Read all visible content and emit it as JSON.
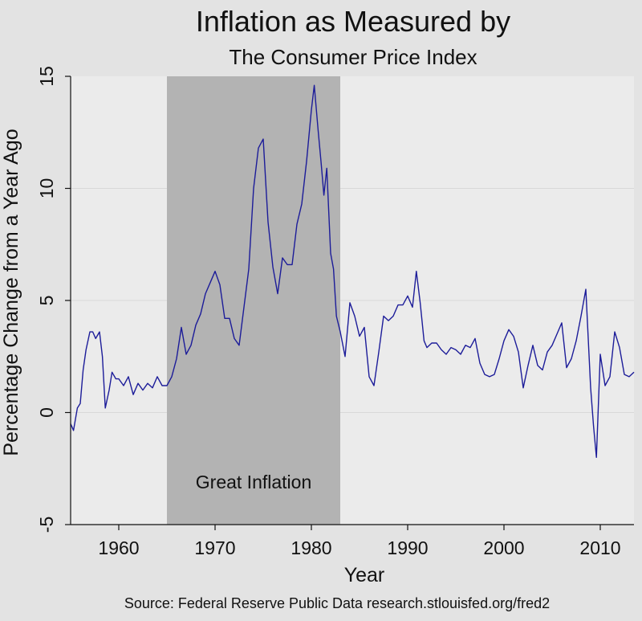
{
  "chart_data": {
    "type": "line",
    "title": "Inflation as Measured by",
    "subtitle": "The Consumer Price Index",
    "xlabel": "Year",
    "ylabel": "Percentage Change from a Year Ago",
    "source": "Source: Federal Reserve Public Data research.stlouisfed.org/fred2",
    "xlim": [
      1955,
      2013.5
    ],
    "ylim": [
      -5,
      15
    ],
    "x_ticks": [
      1960,
      1970,
      1980,
      1990,
      2000,
      2010
    ],
    "y_ticks": [
      -5,
      0,
      5,
      10,
      15
    ],
    "grid": "horizontal",
    "shaded_region": {
      "x_start": 1965,
      "x_end": 1983,
      "label": "Great Inflation"
    },
    "colors": {
      "line": "#1c1c99",
      "plot_bg": "#ebebeb",
      "shade": "#b3b3b3",
      "page_bg": "#e3e3e3"
    },
    "series": [
      {
        "x": [
          1955.0,
          1955.3,
          1955.7,
          1956.0,
          1956.3,
          1956.6,
          1957.0,
          1957.3,
          1957.6,
          1958.0,
          1958.3,
          1958.6,
          1959.0,
          1959.3,
          1959.7,
          1960.0,
          1960.5,
          1961.0,
          1961.5,
          1962.0,
          1962.5,
          1963.0,
          1963.5,
          1964.0,
          1964.5,
          1965.0,
          1965.5,
          1966.0,
          1966.5,
          1967.0,
          1967.5,
          1968.0,
          1968.5,
          1969.0,
          1969.5,
          1970.0,
          1970.5,
          1971.0,
          1971.5,
          1972.0,
          1972.5,
          1973.0,
          1973.5,
          1974.0,
          1974.5,
          1975.0,
          1975.5,
          1976.0,
          1976.5,
          1977.0,
          1977.5,
          1978.0,
          1978.5,
          1979.0,
          1979.5,
          1980.0,
          1980.3,
          1980.7,
          1981.0,
          1981.3,
          1981.6,
          1982.0,
          1982.3,
          1982.6,
          1983.0,
          1983.5,
          1984.0,
          1984.5,
          1985.0,
          1985.5,
          1986.0,
          1986.5,
          1987.0,
          1987.5,
          1988.0,
          1988.5,
          1989.0,
          1989.5,
          1990.0,
          1990.5,
          1990.9,
          1991.3,
          1991.7,
          1992.0,
          1992.5,
          1993.0,
          1993.5,
          1994.0,
          1994.5,
          1995.0,
          1995.5,
          1996.0,
          1996.5,
          1997.0,
          1997.5,
          1998.0,
          1998.5,
          1999.0,
          1999.5,
          2000.0,
          2000.5,
          2001.0,
          2001.5,
          2002.0,
          2002.5,
          2003.0,
          2003.5,
          2004.0,
          2004.5,
          2005.0,
          2005.5,
          2006.0,
          2006.5,
          2007.0,
          2007.5,
          2008.0,
          2008.5,
          2009.0,
          2009.3,
          2009.6,
          2010.0,
          2010.5,
          2011.0,
          2011.5,
          2012.0,
          2012.5,
          2013.0,
          2013.5
        ],
        "y": [
          -0.5,
          -0.8,
          0.2,
          0.4,
          1.9,
          2.8,
          3.6,
          3.6,
          3.3,
          3.6,
          2.5,
          0.2,
          1.0,
          1.8,
          1.5,
          1.5,
          1.2,
          1.6,
          0.8,
          1.3,
          1.0,
          1.3,
          1.1,
          1.6,
          1.2,
          1.2,
          1.6,
          2.4,
          3.8,
          2.6,
          3.0,
          3.9,
          4.4,
          5.3,
          5.8,
          6.3,
          5.7,
          4.2,
          4.2,
          3.3,
          3.0,
          4.7,
          6.4,
          10.0,
          11.8,
          12.2,
          8.5,
          6.5,
          5.3,
          6.9,
          6.6,
          6.6,
          8.4,
          9.3,
          11.2,
          13.5,
          14.6,
          12.6,
          11.2,
          9.7,
          10.9,
          7.1,
          6.4,
          4.3,
          3.6,
          2.5,
          4.9,
          4.3,
          3.4,
          3.8,
          1.6,
          1.2,
          2.7,
          4.3,
          4.1,
          4.3,
          4.8,
          4.8,
          5.2,
          4.7,
          6.3,
          4.9,
          3.2,
          2.9,
          3.1,
          3.1,
          2.8,
          2.6,
          2.9,
          2.8,
          2.6,
          3.0,
          2.9,
          3.3,
          2.2,
          1.7,
          1.6,
          1.7,
          2.4,
          3.2,
          3.7,
          3.4,
          2.7,
          1.1,
          2.1,
          3.0,
          2.1,
          1.9,
          2.7,
          3.0,
          3.5,
          4.0,
          2.0,
          2.4,
          3.2,
          4.3,
          5.5,
          1.1,
          -0.6,
          -2.0,
          2.6,
          1.2,
          1.6,
          3.6,
          2.9,
          1.7,
          1.6,
          1.8
        ]
      }
    ]
  }
}
